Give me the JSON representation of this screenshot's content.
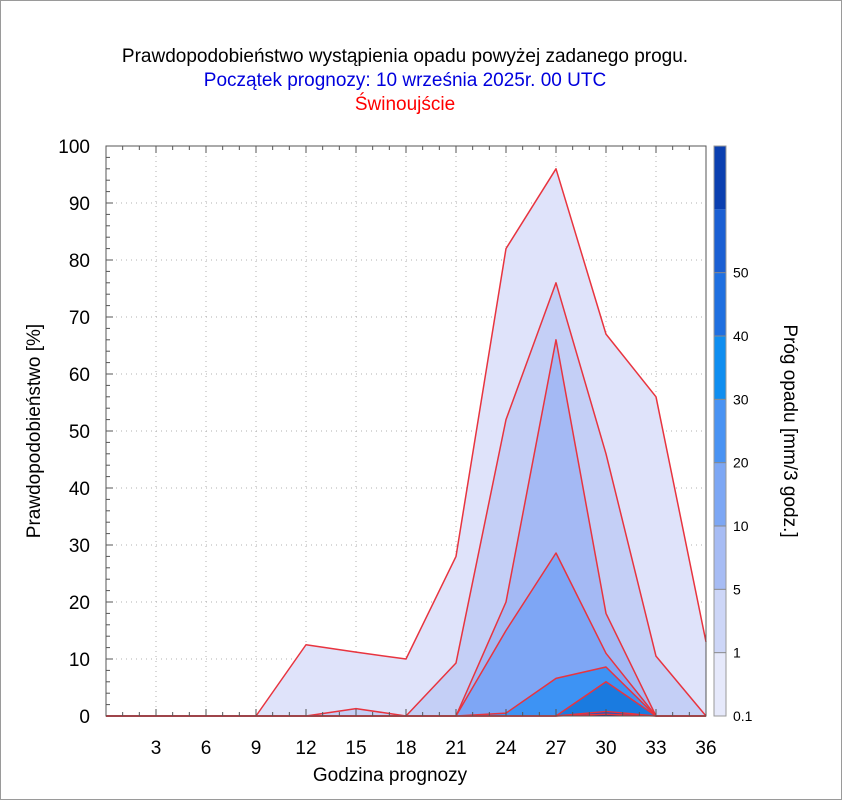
{
  "header": {
    "title": "Prawdopodobieństwo wystąpienia opadu powyżej zadanego progu.",
    "subtitle": "Początek prognozy: 10 września 2025r. 00 UTC",
    "location": "Świnoujście"
  },
  "chart_data": {
    "type": "area",
    "xlabel": "Godzina prognozy",
    "ylabel": "Prawdopodobieństwo [%]",
    "colorbar_label": "Próg opadu [mm/3 godz.]",
    "xlim": [
      0,
      36
    ],
    "ylim": [
      0,
      100
    ],
    "x_ticks": [
      3,
      6,
      9,
      12,
      15,
      18,
      21,
      24,
      27,
      30,
      33,
      36
    ],
    "y_ticks": [
      0,
      10,
      20,
      30,
      40,
      50,
      60,
      70,
      80,
      90,
      100
    ],
    "grid": true,
    "x": [
      0,
      3,
      6,
      9,
      12,
      15,
      18,
      21,
      24,
      27,
      30,
      33,
      36
    ],
    "series": [
      {
        "threshold": 0.1,
        "color": "#dfe3fa",
        "values": [
          0,
          0,
          0,
          0,
          12.5,
          11.2,
          10,
          28,
          82,
          96,
          67,
          56,
          13
        ]
      },
      {
        "threshold": 1,
        "color": "#c4cff6",
        "values": [
          0,
          0,
          0,
          0,
          0,
          1.3,
          0,
          9.3,
          52,
          76,
          46,
          10.5,
          0
        ]
      },
      {
        "threshold": 5,
        "color": "#a4b9f4",
        "values": [
          0,
          0,
          0,
          0,
          0,
          0,
          0,
          0,
          20,
          66,
          18,
          0,
          0
        ]
      },
      {
        "threshold": 10,
        "color": "#7ea6f5",
        "values": [
          0,
          0,
          0,
          0,
          0,
          0,
          0,
          0,
          15,
          28.6,
          11,
          0,
          0
        ]
      },
      {
        "threshold": 20,
        "color": "#3d93f4",
        "values": [
          0,
          0,
          0,
          0,
          0,
          0,
          0,
          0,
          0.5,
          6.6,
          8.6,
          0,
          0
        ]
      },
      {
        "threshold": 30,
        "color": "#1a7be0",
        "values": [
          0,
          0,
          0,
          0,
          0,
          0,
          0,
          0,
          0,
          0,
          6,
          0,
          0
        ]
      },
      {
        "threshold": 40,
        "color": "#1456c8",
        "values": [
          0,
          0,
          0,
          0,
          0,
          0,
          0,
          0,
          0,
          0,
          0.8,
          0,
          0
        ]
      },
      {
        "threshold": 50,
        "color": "#0c2e8a",
        "values": [
          0,
          0,
          0,
          0,
          0,
          0,
          0,
          0,
          0,
          0,
          0.3,
          0,
          0
        ]
      }
    ],
    "colorbar": {
      "labels": [
        "0.1",
        "1",
        "5",
        "10",
        "20",
        "30",
        "40",
        "50"
      ],
      "colors": [
        "#e6e9fb",
        "#cdd6f7",
        "#a7bcf4",
        "#7da7f4",
        "#4993f3",
        "#0f8ef0",
        "#1f6fe0",
        "#1b5fd3",
        "#0a3fb0"
      ]
    },
    "line_color": "#e8343f"
  }
}
